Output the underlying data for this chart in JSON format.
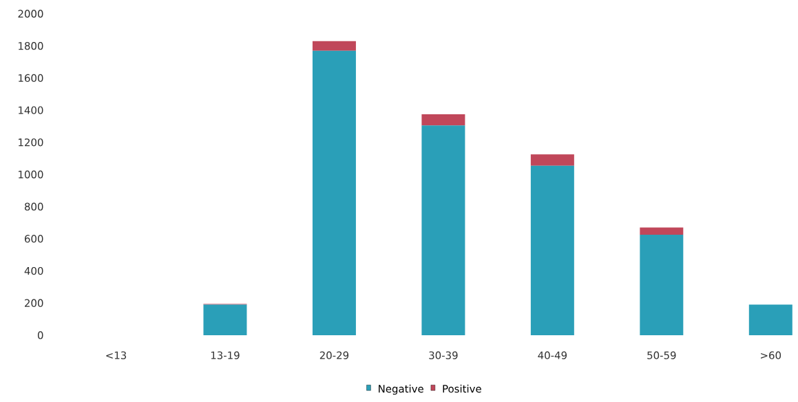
{
  "chart_data": {
    "type": "bar",
    "stacked": true,
    "categories": [
      "<13",
      "13-19",
      "20-29",
      "30-39",
      "40-49",
      "50-59",
      ">60"
    ],
    "series": [
      {
        "name": "Negative",
        "color": "#2a9fb8",
        "values": [
          0,
          190,
          1770,
          1305,
          1055,
          625,
          190
        ]
      },
      {
        "name": "Positive",
        "color": "#c0475a",
        "values": [
          0,
          5,
          60,
          70,
          70,
          45,
          0
        ]
      }
    ],
    "ylim": [
      0,
      2000
    ],
    "yticks": [
      0,
      200,
      400,
      600,
      800,
      1000,
      1200,
      1400,
      1600,
      1800,
      2000
    ],
    "grid": false,
    "legend": "bottom"
  }
}
